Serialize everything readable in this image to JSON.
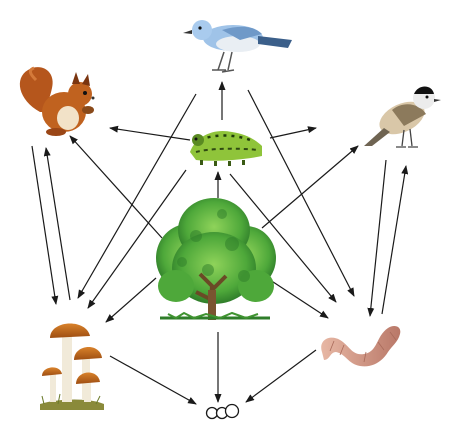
{
  "organisms": [
    {
      "id": "bird-top",
      "name": "bird-icon"
    },
    {
      "id": "squirrel",
      "name": "squirrel-icon"
    },
    {
      "id": "caterpillar",
      "name": "caterpillar-icon"
    },
    {
      "id": "bird-right",
      "name": "tit-bird-icon"
    },
    {
      "id": "tree",
      "name": "tree-icon"
    },
    {
      "id": "mushrooms",
      "name": "mushroom-icon"
    },
    {
      "id": "worm",
      "name": "earthworm-icon"
    },
    {
      "id": "decomposition",
      "name": "decomposition-circles-icon"
    }
  ],
  "links": [
    {
      "from": "tree",
      "to": "caterpillar"
    },
    {
      "from": "tree",
      "to": "squirrel"
    },
    {
      "from": "tree",
      "to": "mushrooms"
    },
    {
      "from": "tree",
      "to": "worm"
    },
    {
      "from": "tree",
      "to": "bird-right"
    },
    {
      "from": "tree",
      "to": "decomposition"
    },
    {
      "from": "caterpillar",
      "to": "bird-top"
    },
    {
      "from": "caterpillar",
      "to": "squirrel"
    },
    {
      "from": "caterpillar",
      "to": "bird-right"
    },
    {
      "from": "caterpillar",
      "to": "mushrooms"
    },
    {
      "from": "caterpillar",
      "to": "worm"
    },
    {
      "from": "bird-top",
      "to": "mushrooms"
    },
    {
      "from": "bird-top",
      "to": "worm"
    },
    {
      "from": "squirrel",
      "to": "mushrooms"
    },
    {
      "from": "mushrooms",
      "to": "squirrel"
    },
    {
      "from": "bird-right",
      "to": "worm"
    },
    {
      "from": "worm",
      "to": "bird-right"
    },
    {
      "from": "mushrooms",
      "to": "decomposition"
    },
    {
      "from": "worm",
      "to": "decomposition"
    }
  ]
}
